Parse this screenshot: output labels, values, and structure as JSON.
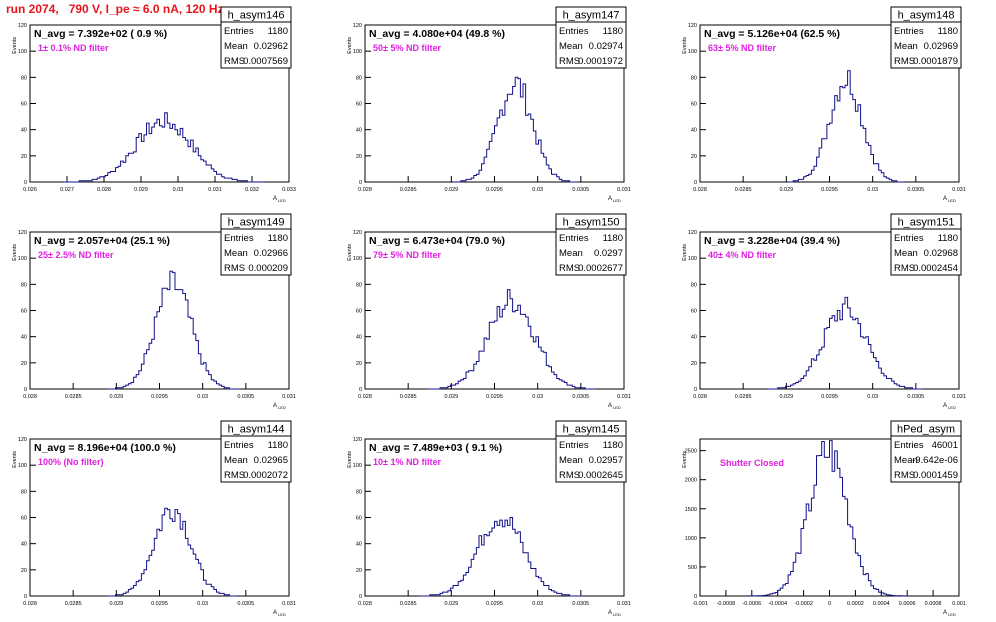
{
  "page": {
    "title": "run 2074,   790 V, I_pe ≈ 6.0 nA, 120 Hz"
  },
  "colors": {
    "title": "#e8141c",
    "histogram": "#10108a",
    "annotation": "#e020e0",
    "axis": "#000000"
  },
  "axis_labels": {
    "y": "Events",
    "x": "A",
    "x_sub": "LED"
  },
  "stats_labels": {
    "entries": "Entries",
    "mean": "Mean",
    "rms": "RMS"
  },
  "chart_data": [
    {
      "type": "histogram",
      "name": "h_asym146",
      "navg": "N_avg = 7.392e+02 ( 0.9 %)",
      "annotation": "1± 0.1% ND filter",
      "entries": "1180",
      "mean": "0.02962",
      "rms": "0.0007569",
      "xlim": [
        0.026,
        0.033
      ],
      "ylim": [
        0,
        120
      ],
      "xticks": [
        "0.026",
        "0.027",
        "0.028",
        "0.029",
        "0.03",
        "0.031",
        "0.032",
        "0.033"
      ],
      "yticks": [
        "0",
        "20",
        "40",
        "60",
        "80",
        "100",
        "120"
      ],
      "sigma": 0.00075,
      "peak": 48
    },
    {
      "type": "histogram",
      "name": "h_asym147",
      "navg": "N_avg = 4.080e+04 (49.8 %)",
      "annotation": "50± 5% ND filter",
      "entries": "1180",
      "mean": "0.02974",
      "rms": "0.0001972",
      "xlim": [
        0.028,
        0.031
      ],
      "ylim": [
        0,
        120
      ],
      "xticks": [
        "0.028",
        "0.0285",
        "0.029",
        "0.0295",
        "0.03",
        "0.0305",
        "0.031"
      ],
      "yticks": [
        "0",
        "20",
        "40",
        "60",
        "80",
        "100",
        "120"
      ],
      "sigma": 0.0002,
      "peak": 78
    },
    {
      "type": "histogram",
      "name": "h_asym148",
      "navg": "N_avg = 5.126e+04 (62.5 %)",
      "annotation": "63± 5% ND filter",
      "entries": "1180",
      "mean": "0.02969",
      "rms": "0.0001879",
      "xlim": [
        0.028,
        0.031
      ],
      "ylim": [
        0,
        120
      ],
      "xticks": [
        "0.028",
        "0.0285",
        "0.029",
        "0.0295",
        "0.03",
        "0.0305",
        "0.031"
      ],
      "yticks": [
        "0",
        "20",
        "40",
        "60",
        "80",
        "100",
        "120"
      ],
      "sigma": 0.00019,
      "peak": 82
    },
    {
      "type": "histogram",
      "name": "h_asym149",
      "navg": "N_avg = 2.057e+04 (25.1 %)",
      "annotation": "25± 2.5% ND filter",
      "entries": "1180",
      "mean": "0.02966",
      "rms": "0.000209",
      "xlim": [
        0.028,
        0.031
      ],
      "ylim": [
        0,
        120
      ],
      "xticks": [
        "0.028",
        "0.0285",
        "0.029",
        "0.0295",
        "0.03",
        "0.0305",
        "0.031"
      ],
      "yticks": [
        "0",
        "20",
        "40",
        "60",
        "80",
        "100",
        "120"
      ],
      "sigma": 0.00021,
      "peak": 82
    },
    {
      "type": "histogram",
      "name": "h_asym150",
      "navg": "N_avg = 6.473e+04 (79.0 %)",
      "annotation": "79± 5% ND filter",
      "entries": "1180",
      "mean": "0.0297",
      "rms": "0.0002677",
      "xlim": [
        0.028,
        0.031
      ],
      "ylim": [
        0,
        120
      ],
      "xticks": [
        "0.028",
        "0.0285",
        "0.029",
        "0.0295",
        "0.03",
        "0.0305",
        "0.031"
      ],
      "yticks": [
        "0",
        "20",
        "40",
        "60",
        "80",
        "100",
        "120"
      ],
      "sigma": 0.00027,
      "peak": 70
    },
    {
      "type": "histogram",
      "name": "h_asym151",
      "navg": "N_avg = 3.228e+04 (39.4 %)",
      "annotation": "40± 4% ND filter",
      "entries": "1180",
      "mean": "0.02968",
      "rms": "0.0002454",
      "xlim": [
        0.028,
        0.031
      ],
      "ylim": [
        0,
        120
      ],
      "xticks": [
        "0.028",
        "0.0285",
        "0.029",
        "0.0295",
        "0.03",
        "0.0305",
        "0.031"
      ],
      "yticks": [
        "0",
        "20",
        "40",
        "60",
        "80",
        "100",
        "120"
      ],
      "sigma": 0.00025,
      "peak": 63
    },
    {
      "type": "histogram",
      "name": "h_asym144",
      "navg": "N_avg = 8.196e+04 (100.0 %)",
      "annotation": "100% (No filter)",
      "entries": "1180",
      "mean": "0.02965",
      "rms": "0.0002072",
      "xlim": [
        0.028,
        0.031
      ],
      "ylim": [
        0,
        120
      ],
      "xticks": [
        "0.028",
        "0.0285",
        "0.029",
        "0.0295",
        "0.03",
        "0.0305",
        "0.031"
      ],
      "yticks": [
        "0",
        "20",
        "40",
        "60",
        "80",
        "100",
        "120"
      ],
      "sigma": 0.00021,
      "peak": 70
    },
    {
      "type": "histogram",
      "name": "h_asym145",
      "navg": "N_avg = 7.489e+03 ( 9.1 %)",
      "annotation": "10± 1% ND filter",
      "entries": "1180",
      "mean": "0.02957",
      "rms": "0.0002645",
      "xlim": [
        0.028,
        0.031
      ],
      "ylim": [
        0,
        120
      ],
      "xticks": [
        "0.028",
        "0.0285",
        "0.029",
        "0.0295",
        "0.03",
        "0.0305",
        "0.031"
      ],
      "yticks": [
        "0",
        "20",
        "40",
        "60",
        "80",
        "100",
        "120"
      ],
      "sigma": 0.00026,
      "peak": 63
    },
    {
      "type": "histogram",
      "name": "hPed_asym",
      "navg": "",
      "annotation": "Shutter Closed",
      "entries": "46001",
      "mean": "-9.642e-06",
      "rms": "0.0001459",
      "xlim": [
        -0.001,
        0.001
      ],
      "ylim": [
        0,
        2700
      ],
      "xticks": [
        "-0.001",
        "-0.0008",
        "-0.0006",
        "-0.0004",
        "-0.0002",
        "0",
        "0.0002",
        "0.0004",
        "0.0006",
        "0.0008",
        "0.001"
      ],
      "yticks": [
        "0",
        "500",
        "1000",
        "1500",
        "2000",
        "2500"
      ],
      "sigma": 0.00015,
      "peak": 2550
    }
  ]
}
